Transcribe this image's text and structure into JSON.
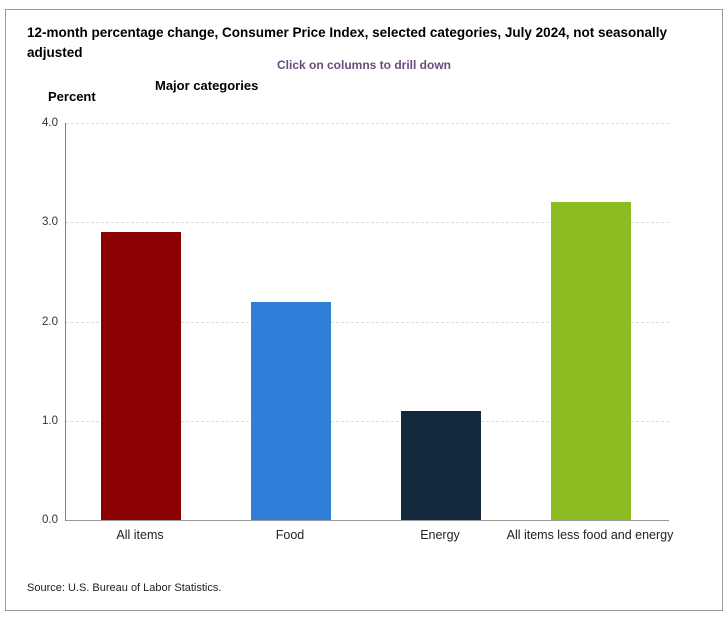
{
  "title": "12-month percentage change, Consumer Price Index, selected categories, July 2024, not seasonally adjusted",
  "subtitle": "Click on columns to drill down",
  "source": "Source: U.S. Bureau of Labor Statistics.",
  "chart_data": {
    "type": "bar",
    "title": "12-month percentage change, Consumer Price Index, selected categories, July 2024, not seasonally adjusted",
    "subtitle": "Click on columns to drill down",
    "xlabel": "Major categories",
    "ylabel": "Percent",
    "categories": [
      "All items",
      "Food",
      "Energy",
      "All items less food and energy"
    ],
    "values": [
      2.9,
      2.2,
      1.1,
      3.2
    ],
    "bar_colors": [
      "#8B0000",
      "#2F7ED8",
      "#12283C",
      "#8BBC21"
    ],
    "ylim": [
      0,
      4
    ],
    "yticks": [
      4.0,
      3.0,
      2.0,
      1.0,
      0.0
    ],
    "ytick_labels": [
      "4.0",
      "3.0",
      "2.0",
      "1.0",
      "0.0"
    ],
    "grid": "horizontal-dashed",
    "legend": "none",
    "colors": {
      "subtitle_text": "#6a4c7c",
      "gridline": "#dddddd",
      "axis_line": "#888888",
      "frame_border": "#9a9a9a"
    }
  }
}
